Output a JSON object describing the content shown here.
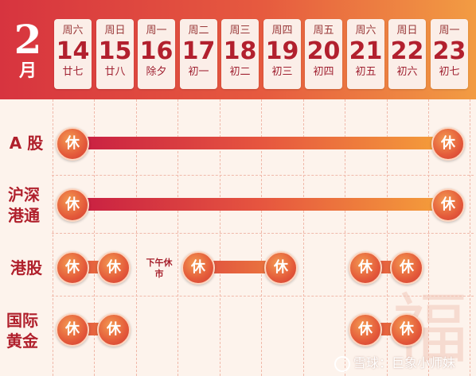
{
  "month": {
    "number": "2",
    "unit": "月"
  },
  "days": [
    {
      "weekday": "周六",
      "date": "14",
      "lunar": "廿七"
    },
    {
      "weekday": "周日",
      "date": "15",
      "lunar": "廿八"
    },
    {
      "weekday": "周一",
      "date": "16",
      "lunar": "除夕"
    },
    {
      "weekday": "周二",
      "date": "17",
      "lunar": "初一"
    },
    {
      "weekday": "周三",
      "date": "18",
      "lunar": "初二"
    },
    {
      "weekday": "周四",
      "date": "19",
      "lunar": "初三"
    },
    {
      "weekday": "周五",
      "date": "20",
      "lunar": "初四"
    },
    {
      "weekday": "周六",
      "date": "21",
      "lunar": "初五"
    },
    {
      "weekday": "周日",
      "date": "22",
      "lunar": "初六"
    },
    {
      "weekday": "周一",
      "date": "23",
      "lunar": "初七"
    }
  ],
  "rows": [
    {
      "label": "A 股"
    },
    {
      "label": "沪深港通"
    },
    {
      "label": "港股"
    },
    {
      "label": "国际黄金"
    }
  ],
  "closed_label": "休",
  "half_day_note": "下午休市",
  "decoration": "福",
  "watermark": "雪球：巨象小师妹",
  "colors": {
    "header_start": "#d7343f",
    "header_end": "#f29c43",
    "accent": "#b0202c"
  }
}
